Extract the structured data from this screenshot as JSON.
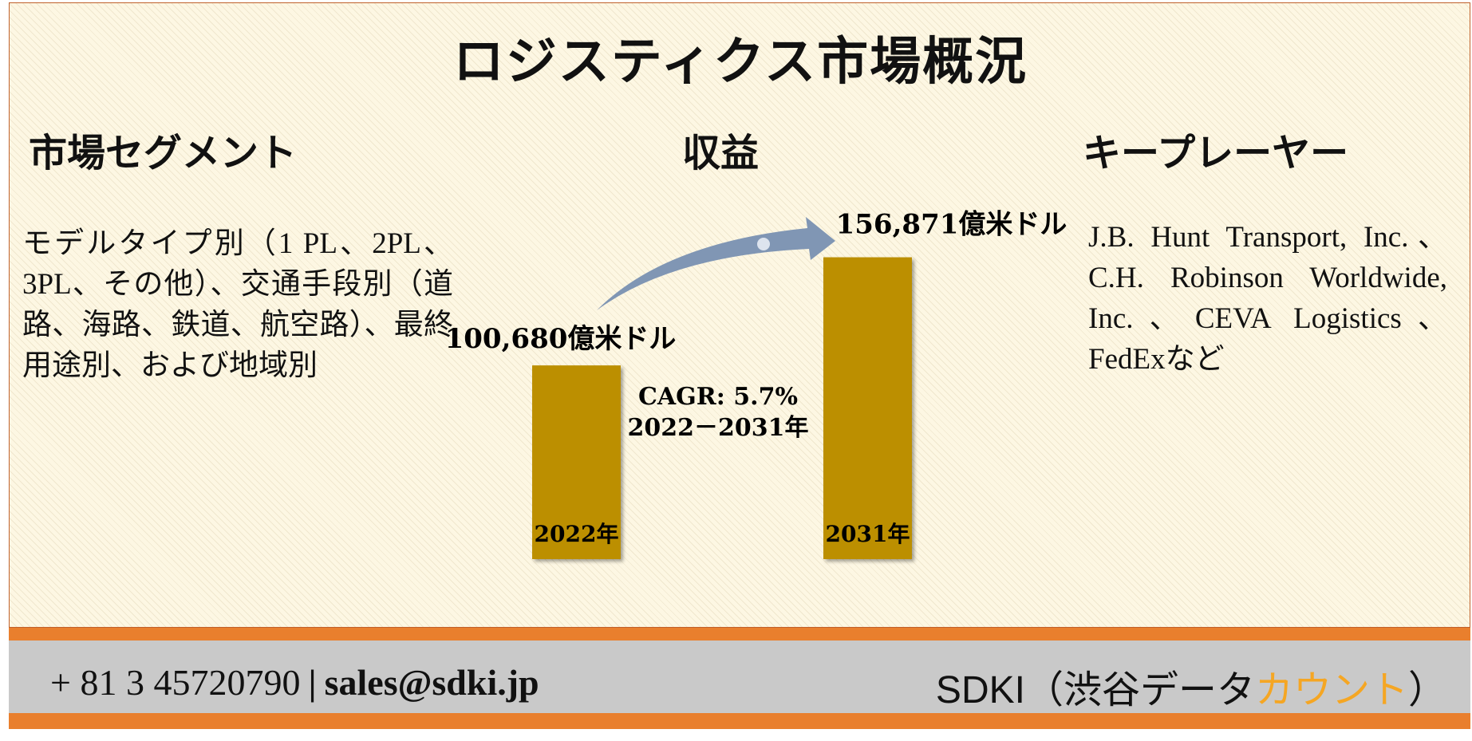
{
  "title": "ロジスティクス市場概況",
  "segment": {
    "heading": "市場セグメント",
    "text": "モデルタイプ別（1 PL、2PL、3PL、その他）、交通手段別（道路、海路、鉄道、航空路）、最終用途別、および地域別"
  },
  "revenue": {
    "heading": "収益",
    "cagr_line1": "CAGR: 5.7%",
    "cagr_line2": "2022－2031年"
  },
  "players": {
    "heading": "キープレーヤー",
    "text": "J.B. Hunt Transport, Inc.、C.H. Robinson Worldwide, Inc.、CEVA Logistics、FedExなど"
  },
  "chart_data": {
    "type": "bar",
    "categories": [
      "2022年",
      "2031年"
    ],
    "values": [
      100680,
      156871
    ],
    "value_labels": [
      "100,680億米ドル",
      "156,871億米ドル"
    ],
    "ylim": [
      0,
      160000
    ],
    "grid": false,
    "colors": {
      "bar": "#bc8f00",
      "arrow": "#8096b4"
    }
  },
  "footer": {
    "phone": "+ 81 3 45720790",
    "separator": "|",
    "email": "sales@sdki.jp",
    "brand_main": "SDKI（渋谷データ",
    "brand_accent": "カウント",
    "brand_end": "）",
    "colors": {
      "band": "#e97f2d",
      "panel": "#c9c9c9",
      "accent": "#f5a623"
    }
  }
}
